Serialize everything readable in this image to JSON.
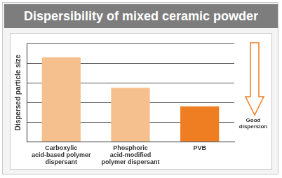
{
  "chart_data": {
    "type": "bar",
    "title": "Dispersibility of mixed ceramic powder",
    "y_label": "Dispersed particle size",
    "annotation": "Good dispersion",
    "categories": [
      "Carboxylic acid-based polymer dispersant",
      "Phosphoric acid-modified polymer dispersant",
      "PVB"
    ],
    "values": [
      4.3,
      2.75,
      1.8
    ],
    "colors": [
      "#f6c08e",
      "#f6c08e",
      "#ef7d22"
    ],
    "ylim": [
      0,
      5
    ],
    "yticks": [
      0,
      1,
      2,
      3,
      4,
      5
    ],
    "grid": true,
    "tick_labels": "x",
    "data_labels": false
  }
}
